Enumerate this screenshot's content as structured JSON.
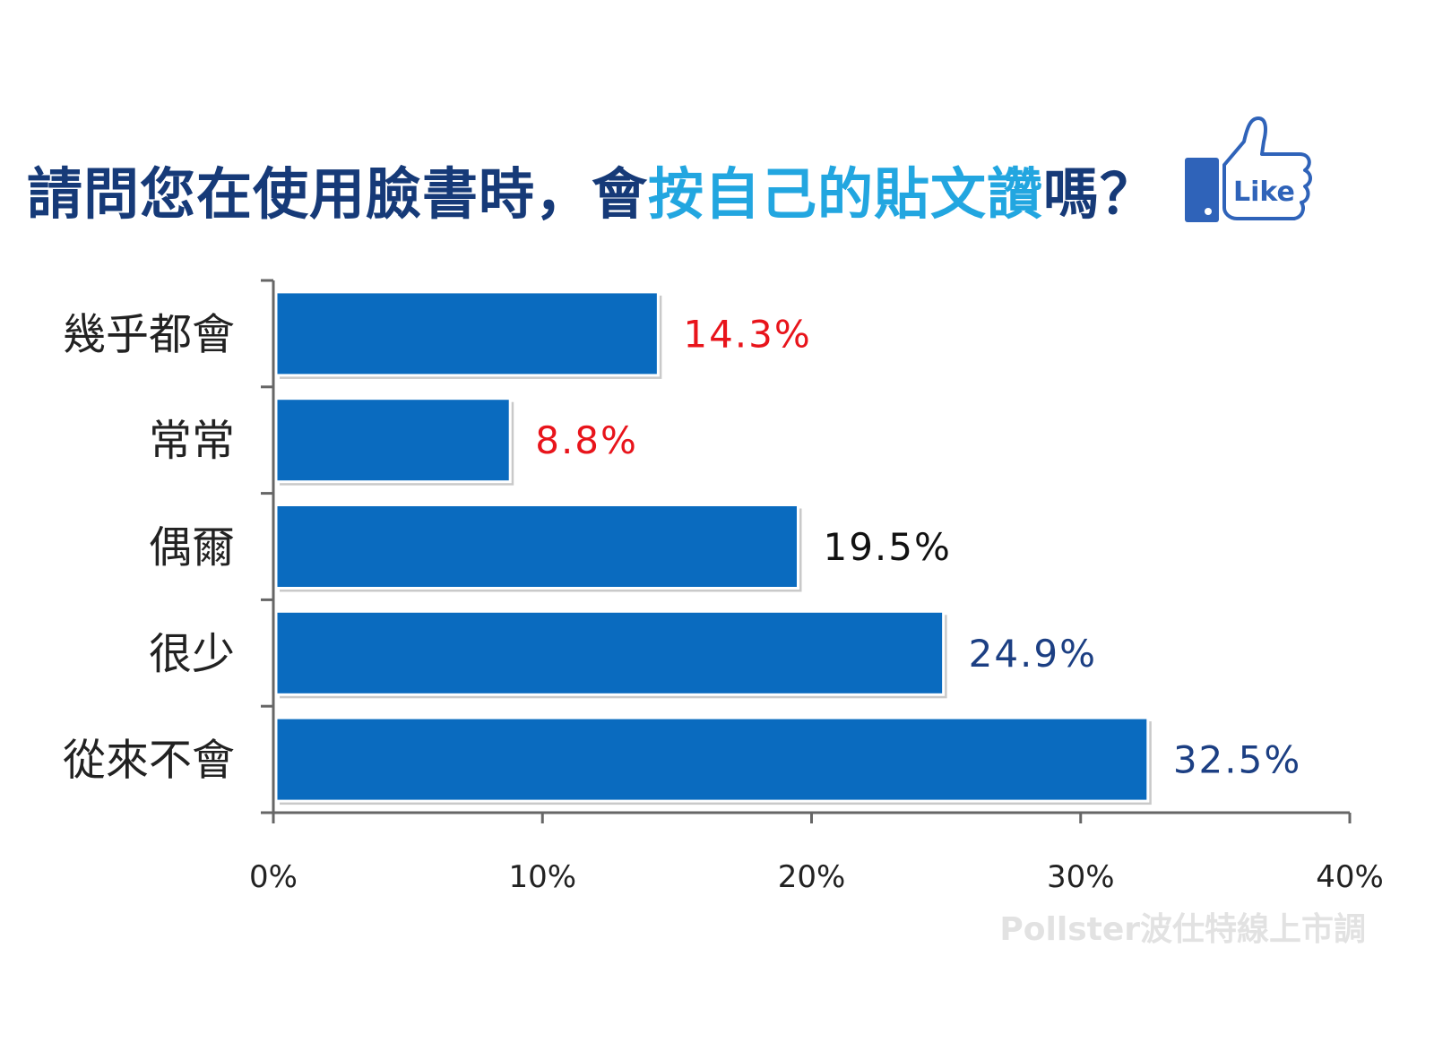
{
  "title": {
    "part1": "請問您在使用臉書時，會",
    "part2": "按自己的貼文讚",
    "part3": "嗎？"
  },
  "like_badge": {
    "label": "Like",
    "icon": "thumbs-up-icon"
  },
  "watermark": "Pollster波仕特線上市調",
  "colors": {
    "bar": "#0a6bbf",
    "title_dark": "#163a78",
    "title_light": "#22a6e0"
  },
  "chart_data": {
    "type": "bar",
    "orientation": "horizontal",
    "categories": [
      "幾乎都會",
      "常常",
      "偶爾",
      "很少",
      "從來不會"
    ],
    "values": [
      14.3,
      8.8,
      19.5,
      24.9,
      32.5
    ],
    "value_labels": [
      "14.3%",
      "8.8%",
      "19.5%",
      "24.9%",
      "32.5%"
    ],
    "value_label_colors": [
      "#e8141b",
      "#e8141b",
      "#111111",
      "#1c3f83",
      "#1c3f83"
    ],
    "xlim": [
      0,
      40
    ],
    "x_ticks": [
      "0%",
      "10%",
      "20%",
      "30%",
      "40%"
    ],
    "grid": false,
    "legend": "none"
  }
}
